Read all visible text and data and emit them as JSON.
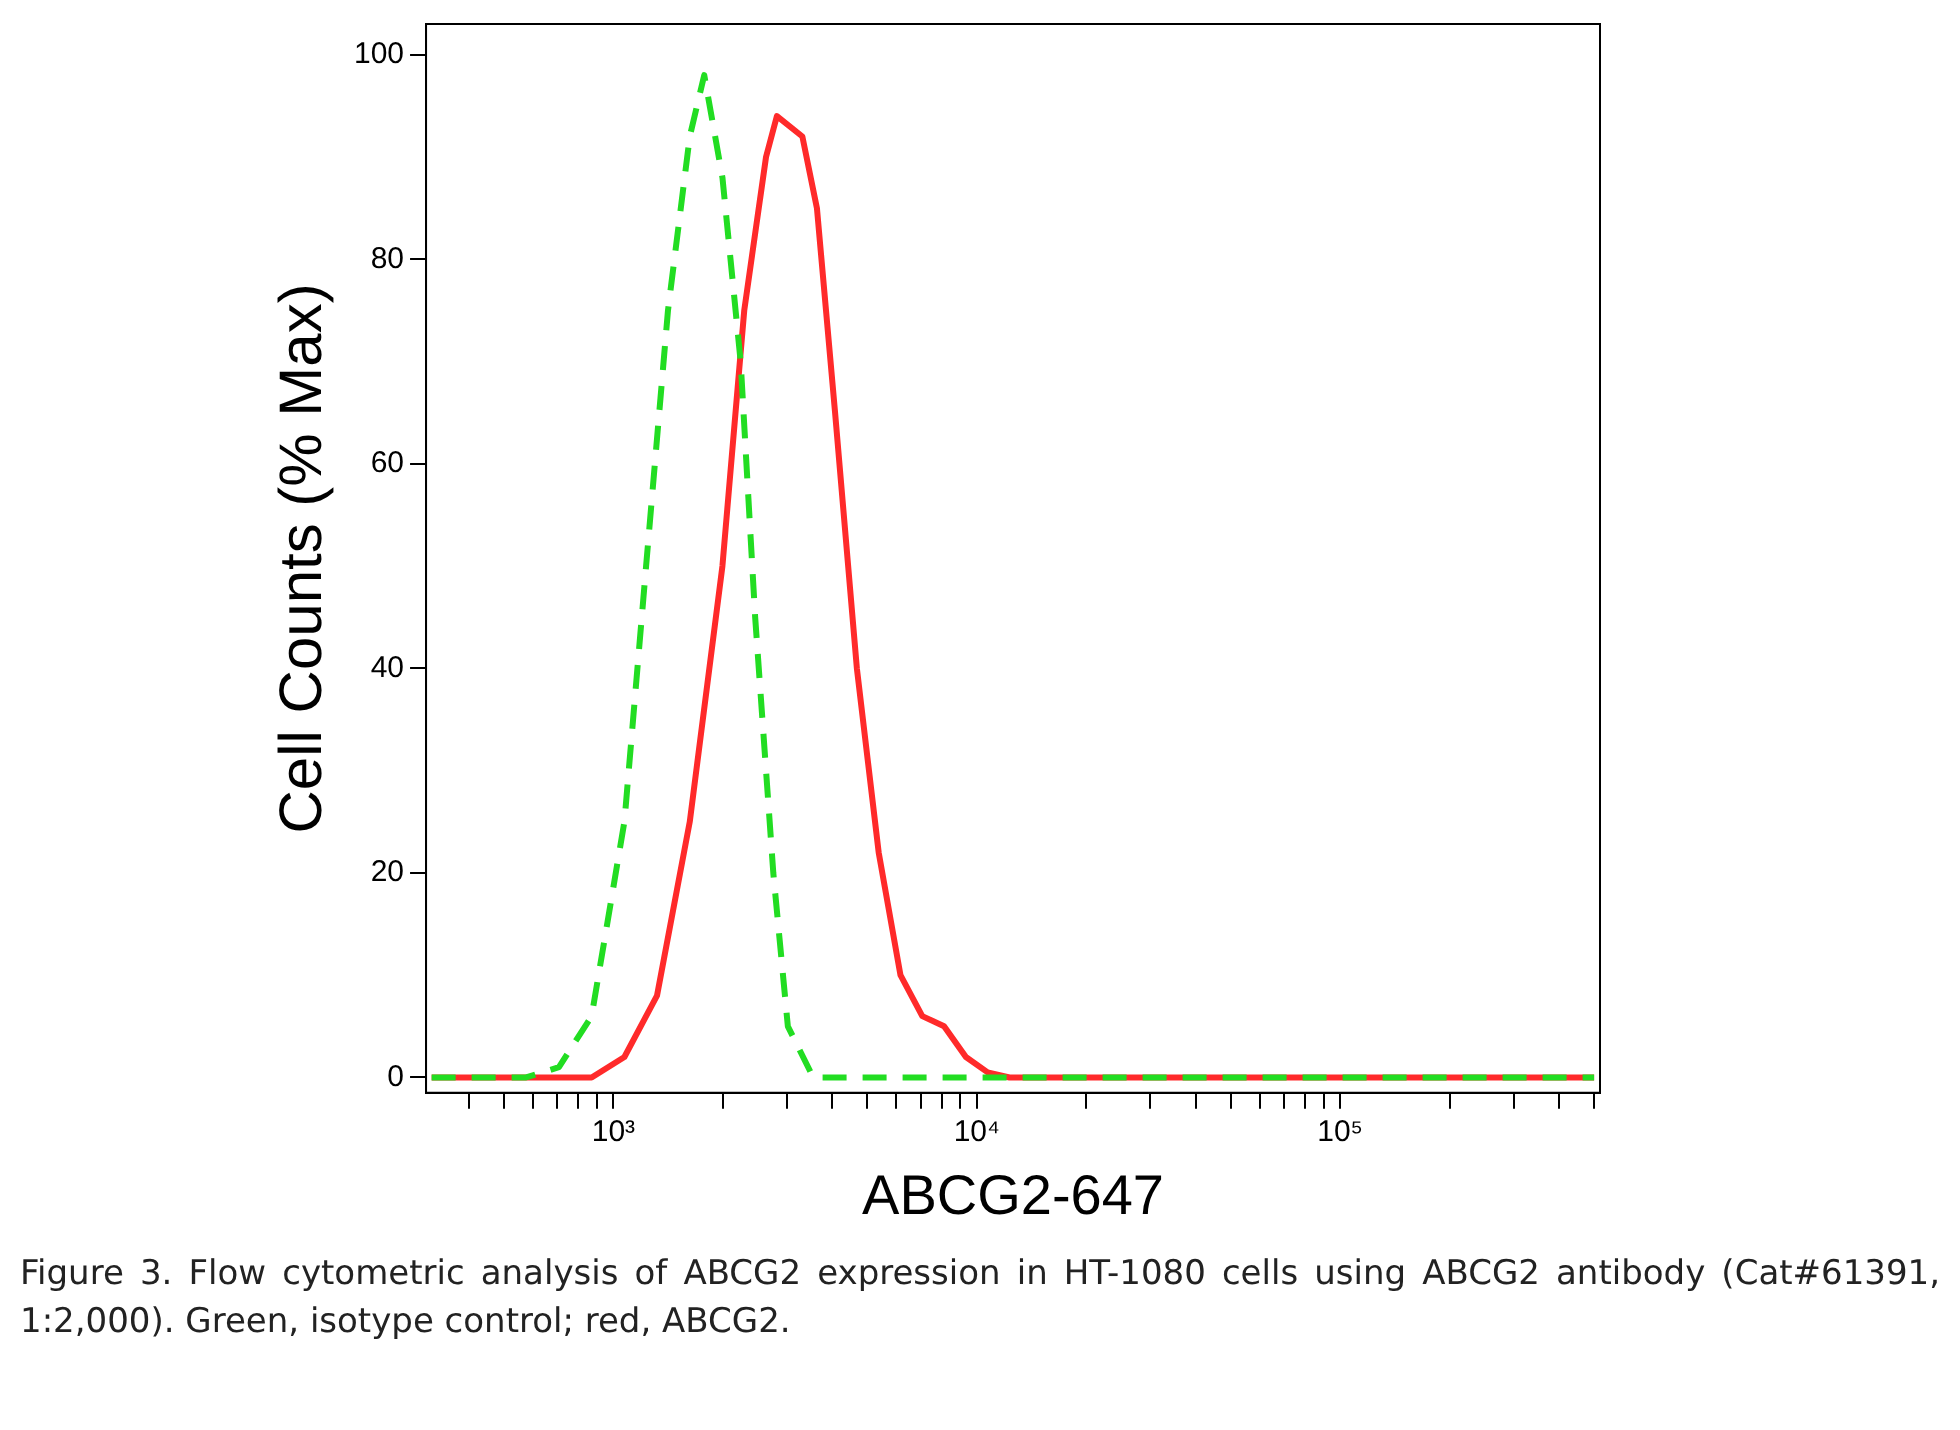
{
  "chart_data": {
    "type": "line",
    "xlabel": "ABCG2-647",
    "ylabel": "Cell Counts (% Max)",
    "log": "x",
    "grid": false,
    "legend": false,
    "xlim": [
      305,
      519000
    ],
    "ylim": [
      -1.5,
      103
    ],
    "xticks": [
      {
        "value": 400,
        "label": null
      },
      {
        "value": 500,
        "label": null
      },
      {
        "value": 600,
        "label": null
      },
      {
        "value": 700,
        "label": null
      },
      {
        "value": 800,
        "label": null
      },
      {
        "value": 900,
        "label": null
      },
      {
        "value": 1000,
        "label": "10³"
      },
      {
        "value": 2000,
        "label": null
      },
      {
        "value": 3000,
        "label": null
      },
      {
        "value": 4000,
        "label": null
      },
      {
        "value": 5000,
        "label": null
      },
      {
        "value": 6000,
        "label": null
      },
      {
        "value": 7000,
        "label": null
      },
      {
        "value": 8000,
        "label": null
      },
      {
        "value": 9000,
        "label": null
      },
      {
        "value": 10000,
        "label": "10⁴"
      },
      {
        "value": 20000,
        "label": null
      },
      {
        "value": 30000,
        "label": null
      },
      {
        "value": 40000,
        "label": null
      },
      {
        "value": 50000,
        "label": null
      },
      {
        "value": 60000,
        "label": null
      },
      {
        "value": 70000,
        "label": null
      },
      {
        "value": 80000,
        "label": null
      },
      {
        "value": 90000,
        "label": null
      },
      {
        "value": 100000,
        "label": "10⁵"
      },
      {
        "value": 200000,
        "label": null
      },
      {
        "value": 300000,
        "label": null
      },
      {
        "value": 400000,
        "label": null
      },
      {
        "value": 500000,
        "label": null
      }
    ],
    "yticks": [
      0,
      20,
      40,
      60,
      80,
      100
    ],
    "series": [
      {
        "color": "#22dd22",
        "line_style": "dashed",
        "x": [
          316,
          575,
          708,
          871,
          1072,
          1230,
          1413,
          1622,
          1778,
          1995,
          2239,
          2455,
          2754,
          3020,
          3548,
          500000
        ],
        "values": [
          0,
          0,
          1,
          6,
          25,
          50,
          75,
          92,
          98,
          88,
          70,
          45,
          20,
          5,
          0,
          0
        ]
      },
      {
        "color": "#ff2a2a",
        "line_style": "solid",
        "x": [
          316,
          871,
          1072,
          1318,
          1622,
          1995,
          2291,
          2630,
          2818,
          3311,
          3631,
          4074,
          4677,
          5370,
          6166,
          7079,
          8128,
          9333,
          10715,
          12303,
          500000
        ],
        "values": [
          0,
          0,
          2,
          8,
          25,
          50,
          75,
          90,
          94,
          92,
          85,
          65,
          40,
          22,
          10,
          6,
          5,
          2,
          0.5,
          0,
          0
        ]
      }
    ],
    "annotations": [
      "Figure 3. Flow cytometric analysis of ABCG2 expression in HT-1080 cells using ABCG2 antibody (Cat#61391, 1:2,000). Green, isotype control; red, ABCG2."
    ]
  }
}
